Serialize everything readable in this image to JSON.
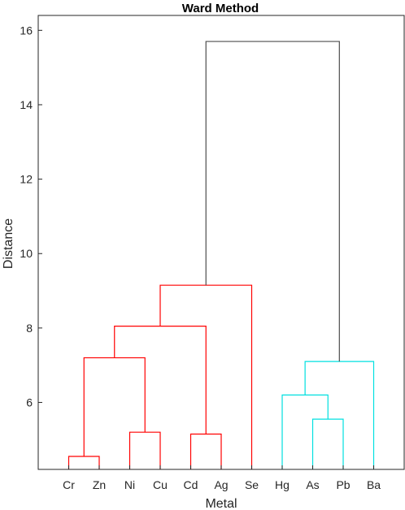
{
  "chart_data": {
    "type": "dendrogram",
    "title": "Ward Method",
    "xlabel": "Metal",
    "ylabel": "Distance",
    "ylim": [
      4.2,
      16.4
    ],
    "yticks": [
      6,
      8,
      10,
      12,
      14,
      16
    ],
    "leaves": [
      "Cr",
      "Zn",
      "Ni",
      "Cu",
      "Cd",
      "Ag",
      "Se",
      "Hg",
      "As",
      "Pb",
      "Ba"
    ],
    "links": [
      {
        "left": "leaf:Cr",
        "right": "leaf:Zn",
        "height": 4.55,
        "color": "#ff0000"
      },
      {
        "left": "leaf:Ni",
        "right": "leaf:Cu",
        "height": 5.2,
        "color": "#ff0000"
      },
      {
        "left": "leaf:Cd",
        "right": "leaf:Ag",
        "height": 5.15,
        "color": "#ff0000"
      },
      {
        "left": "leaf:As",
        "right": "leaf:Pb",
        "height": 5.55,
        "color": "#00e0e0"
      },
      {
        "left": "leaf:Hg",
        "right": "link:3",
        "height": 6.2,
        "color": "#00e0e0"
      },
      {
        "left": "link:4",
        "right": "leaf:Ba",
        "height": 7.1,
        "color": "#00e0e0"
      },
      {
        "left": "link:0",
        "right": "link:1",
        "height": 7.2,
        "color": "#ff0000"
      },
      {
        "left": "link:6",
        "right": "link:2",
        "height": 8.05,
        "color": "#ff0000"
      },
      {
        "left": "link:7",
        "right": "leaf:Se",
        "height": 9.15,
        "color": "#ff0000"
      },
      {
        "left": "link:8",
        "right": "link:5",
        "height": 15.7,
        "color": "#4d4d4d"
      }
    ],
    "grid": false
  }
}
